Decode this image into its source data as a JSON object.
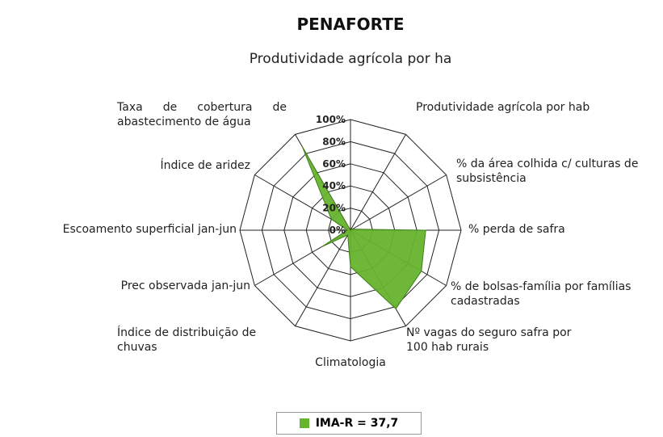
{
  "chart_data": {
    "type": "radar",
    "title": "PENAFORTE",
    "categories": [
      "Produtividade agrícola por ha",
      "Produtividade agrícola por hab",
      "% da área colhida c/ culturas de subsistência",
      "% perda de safra",
      "% de bolsas-família por famílias cadastradas",
      "Nº vagas do seguro safra por 100 hab rurais",
      "Climatologia",
      "Índice de distribuição de chuvas",
      "Prec observada  jan-jun",
      "Escoamento superficial jan-jun",
      "Índice de aridez",
      "Taxa de cobertura de abastecimento de água"
    ],
    "series": [
      {
        "name": "IMA-R = 37,7",
        "color": "#66b32e",
        "values": [
          0,
          0,
          2,
          68,
          74,
          82,
          33,
          5,
          30,
          3,
          20,
          87
        ]
      }
    ],
    "ylim": [
      0,
      100
    ],
    "yticks": [
      {
        "value": 0,
        "label": "0%"
      },
      {
        "value": 20,
        "label": "20%"
      },
      {
        "value": 40,
        "label": "40%"
      },
      {
        "value": 60,
        "label": "60%"
      },
      {
        "value": 80,
        "label": "80%"
      },
      {
        "value": 100,
        "label": "100%"
      }
    ],
    "grid": true,
    "legend": "bottom"
  }
}
